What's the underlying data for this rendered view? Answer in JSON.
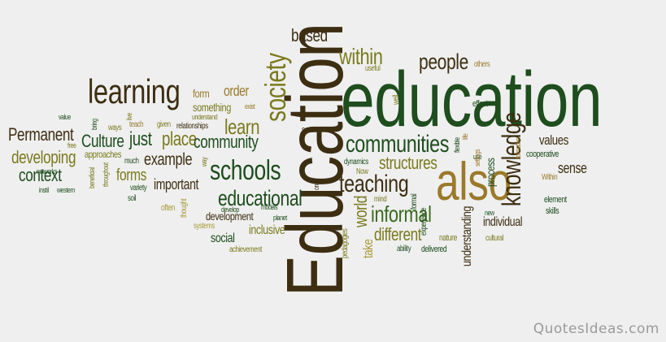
{
  "watermark": "QuotesIdeas.com",
  "colors": {
    "background": "#efefef",
    "dark_green": "#1e4d1e",
    "green": "#3a6b1e",
    "olive": "#7a7a1e",
    "tan": "#9a7a2a",
    "dark_brown": "#3d2e12",
    "khaki": "#a89a3a"
  },
  "words": [
    {
      "text": "education",
      "c": "dark_green"
    },
    {
      "text": "Education",
      "c": "dark_brown"
    },
    {
      "text": "also",
      "c": "tan"
    },
    {
      "text": "learning",
      "c": "dark_brown"
    },
    {
      "text": "society",
      "c": "olive"
    },
    {
      "text": "schools",
      "c": "dark_green"
    },
    {
      "text": "communities",
      "c": "dark_green"
    },
    {
      "text": "teaching",
      "c": "dark_brown"
    },
    {
      "text": "educational",
      "c": "dark_green"
    },
    {
      "text": "knowledge",
      "c": "dark_brown"
    },
    {
      "text": "informal",
      "c": "green"
    },
    {
      "text": "people",
      "c": "dark_brown"
    },
    {
      "text": "within",
      "c": "olive"
    },
    {
      "text": "structures",
      "c": "olive"
    },
    {
      "text": "different",
      "c": "olive"
    },
    {
      "text": "based",
      "c": "dark_brown"
    },
    {
      "text": "Culture",
      "c": "dark_green"
    },
    {
      "text": "just",
      "c": "dark_green"
    },
    {
      "text": "place",
      "c": "olive"
    },
    {
      "text": "learn",
      "c": "olive"
    },
    {
      "text": "community",
      "c": "dark_green"
    },
    {
      "text": "context",
      "c": "dark_green"
    },
    {
      "text": "developing",
      "c": "olive"
    },
    {
      "text": "Permanent",
      "c": "dark_brown"
    },
    {
      "text": "example",
      "c": "dark_brown"
    },
    {
      "text": "forms",
      "c": "olive"
    },
    {
      "text": "important",
      "c": "dark_brown"
    },
    {
      "text": "order",
      "c": "tan"
    },
    {
      "text": "form",
      "c": "tan"
    },
    {
      "text": "something",
      "c": "olive"
    },
    {
      "text": "understanding",
      "c": "dark_brown"
    },
    {
      "text": "world",
      "c": "olive"
    },
    {
      "text": "take",
      "c": "khaki"
    },
    {
      "text": "development",
      "c": "dark_brown"
    },
    {
      "text": "inclusive",
      "c": "olive"
    },
    {
      "text": "social",
      "c": "dark_green"
    },
    {
      "text": "values",
      "c": "dark_brown"
    },
    {
      "text": "sense",
      "c": "dark_brown"
    },
    {
      "text": "individual",
      "c": "dark_brown"
    },
    {
      "text": "process",
      "c": "dark_green"
    },
    {
      "text": "nature",
      "c": "olive"
    },
    {
      "text": "delivered",
      "c": "dark_green"
    },
    {
      "text": "cooperative",
      "c": "dark_green"
    },
    {
      "text": "achievement",
      "c": "olive"
    },
    {
      "text": "relationships",
      "c": "dark_brown"
    },
    {
      "text": "approaches",
      "c": "olive"
    },
    {
      "text": "seen",
      "c": "dark_brown"
    },
    {
      "text": "dynamics",
      "c": "dark_green"
    },
    {
      "text": "Now",
      "c": "olive"
    },
    {
      "text": "effect",
      "c": "dark_green"
    },
    {
      "text": "useful",
      "c": "olive"
    },
    {
      "text": "well",
      "c": "olive"
    },
    {
      "text": "others",
      "c": "tan"
    },
    {
      "text": "skills",
      "c": "dark_green"
    },
    {
      "text": "element",
      "c": "dark_green"
    },
    {
      "text": "cultural",
      "c": "olive"
    },
    {
      "text": "Within",
      "c": "tan"
    },
    {
      "text": "new",
      "c": "dark_green"
    },
    {
      "text": "ability",
      "c": "dark_green"
    },
    {
      "text": "experience",
      "c": "dark_green"
    },
    {
      "text": "formal",
      "c": "dark_green"
    },
    {
      "text": "mind",
      "c": "olive"
    },
    {
      "text": "pedagogies",
      "c": "olive"
    },
    {
      "text": "planet",
      "c": "dark_green"
    },
    {
      "text": "models",
      "c": "dark_green"
    },
    {
      "text": "develop",
      "c": "dark_green"
    },
    {
      "text": "systems",
      "c": "khaki"
    },
    {
      "text": "often",
      "c": "khaki"
    },
    {
      "text": "thought",
      "c": "khaki"
    },
    {
      "text": "soil",
      "c": "dark_green"
    },
    {
      "text": "variety",
      "c": "dark_green"
    },
    {
      "text": "much",
      "c": "dark_green"
    },
    {
      "text": "ways",
      "c": "olive"
    },
    {
      "text": "teach",
      "c": "tan"
    },
    {
      "text": "given",
      "c": "olive"
    },
    {
      "text": "understand",
      "c": "olive"
    },
    {
      "text": "way",
      "c": "olive"
    },
    {
      "text": "exist",
      "c": "tan"
    },
    {
      "text": "value",
      "c": "dark_green"
    },
    {
      "text": "networks",
      "c": "dark_green"
    },
    {
      "text": "instil",
      "c": "dark_green"
    },
    {
      "text": "western",
      "c": "dark_green"
    },
    {
      "text": "beneficial",
      "c": "olive"
    },
    {
      "text": "throughout",
      "c": "olive"
    },
    {
      "text": "bring",
      "c": "dark_green"
    },
    {
      "text": "free",
      "c": "olive"
    },
    {
      "text": "one",
      "c": "dark_brown"
    },
    {
      "text": "flexible",
      "c": "dark_green"
    },
    {
      "text": "life",
      "c": "tan"
    },
    {
      "text": "use",
      "c": "dark_green"
    },
    {
      "text": "settings",
      "c": "tan"
    },
    {
      "text": "formative",
      "c": "tan"
    },
    {
      "text": "live",
      "c": "olive"
    }
  ]
}
